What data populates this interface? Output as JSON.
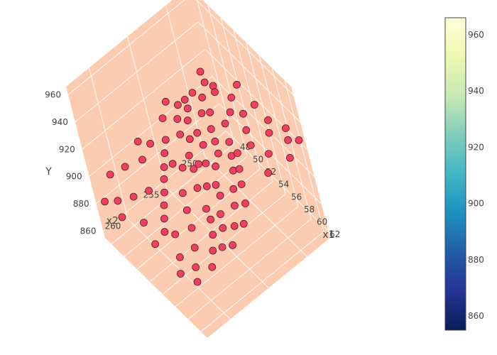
{
  "chart_data": {
    "type": "scatter",
    "dimensions": "3d",
    "axes": {
      "x": {
        "label": "x1",
        "ticks": [
          "48",
          "50",
          "52",
          "54",
          "56",
          "58",
          "60",
          "62"
        ],
        "range": [
          47,
          63
        ]
      },
      "y": {
        "label": "x2",
        "ticks": [
          "250",
          "255",
          "260"
        ],
        "range": [
          247,
          263
        ]
      },
      "z": {
        "label": "Y",
        "ticks": [
          "860",
          "880",
          "900",
          "920",
          "940",
          "960"
        ],
        "range": [
          855,
          966
        ]
      }
    },
    "colorbar": {
      "ticks": [
        "860",
        "880",
        "900",
        "920",
        "940",
        "960"
      ],
      "range": [
        855,
        966
      ],
      "colorscale": [
        "#081d58",
        "#253494",
        "#225ea8",
        "#1d91c0",
        "#41b6c4",
        "#7fcdbb",
        "#c7e9b4",
        "#edf8b1",
        "#ffffd9"
      ]
    },
    "marker_color": "#f0405f",
    "marker_outline": "#5a1a28",
    "scene_background": "#fcccb1",
    "grid": true,
    "points": [
      {
        "x": 47.8,
        "y": 251.0,
        "z": 905
      },
      {
        "x": 48.2,
        "y": 252.1,
        "z": 908
      },
      {
        "x": 48.6,
        "y": 250.4,
        "z": 911
      },
      {
        "x": 49.1,
        "y": 253.0,
        "z": 906
      },
      {
        "x": 49.5,
        "y": 251.8,
        "z": 910
      },
      {
        "x": 50.0,
        "y": 250.2,
        "z": 913
      },
      {
        "x": 50.4,
        "y": 252.6,
        "z": 909
      },
      {
        "x": 50.8,
        "y": 254.0,
        "z": 907
      },
      {
        "x": 51.2,
        "y": 251.3,
        "z": 912
      },
      {
        "x": 51.6,
        "y": 253.5,
        "z": 905
      },
      {
        "x": 52.0,
        "y": 250.8,
        "z": 914
      },
      {
        "x": 52.3,
        "y": 252.9,
        "z": 910
      },
      {
        "x": 52.7,
        "y": 254.6,
        "z": 903
      },
      {
        "x": 53.1,
        "y": 251.7,
        "z": 911
      },
      {
        "x": 53.5,
        "y": 253.2,
        "z": 908
      },
      {
        "x": 53.9,
        "y": 255.1,
        "z": 901
      },
      {
        "x": 54.2,
        "y": 250.6,
        "z": 915
      },
      {
        "x": 54.6,
        "y": 252.4,
        "z": 912
      },
      {
        "x": 55.0,
        "y": 254.2,
        "z": 906
      },
      {
        "x": 55.4,
        "y": 256.0,
        "z": 898
      },
      {
        "x": 55.8,
        "y": 251.5,
        "z": 913
      },
      {
        "x": 56.1,
        "y": 253.8,
        "z": 907
      },
      {
        "x": 56.5,
        "y": 255.5,
        "z": 902
      },
      {
        "x": 56.9,
        "y": 252.2,
        "z": 911
      },
      {
        "x": 57.3,
        "y": 254.9,
        "z": 904
      },
      {
        "x": 57.7,
        "y": 256.8,
        "z": 897
      },
      {
        "x": 58.0,
        "y": 253.0,
        "z": 909
      },
      {
        "x": 58.4,
        "y": 255.3,
        "z": 903
      },
      {
        "x": 58.8,
        "y": 257.2,
        "z": 896
      },
      {
        "x": 59.2,
        "y": 254.1,
        "z": 906
      },
      {
        "x": 59.6,
        "y": 256.4,
        "z": 900
      },
      {
        "x": 60.0,
        "y": 258.0,
        "z": 894
      },
      {
        "x": 60.3,
        "y": 255.0,
        "z": 903
      },
      {
        "x": 60.7,
        "y": 257.1,
        "z": 898
      },
      {
        "x": 61.1,
        "y": 259.0,
        "z": 892
      },
      {
        "x": 61.5,
        "y": 256.2,
        "z": 899
      },
      {
        "x": 61.9,
        "y": 258.3,
        "z": 895
      },
      {
        "x": 62.2,
        "y": 260.1,
        "z": 890
      },
      {
        "x": 62.6,
        "y": 257.5,
        "z": 896
      },
      {
        "x": 49.8,
        "y": 255.2,
        "z": 904
      },
      {
        "x": 50.6,
        "y": 256.1,
        "z": 902
      },
      {
        "x": 51.5,
        "y": 257.0,
        "z": 900
      },
      {
        "x": 52.4,
        "y": 257.8,
        "z": 899
      },
      {
        "x": 53.3,
        "y": 258.6,
        "z": 897
      },
      {
        "x": 54.1,
        "y": 259.4,
        "z": 895
      },
      {
        "x": 55.0,
        "y": 260.2,
        "z": 893
      },
      {
        "x": 55.9,
        "y": 261.0,
        "z": 891
      },
      {
        "x": 48.9,
        "y": 256.5,
        "z": 903
      },
      {
        "x": 49.3,
        "y": 258.0,
        "z": 900
      },
      {
        "x": 48.4,
        "y": 259.6,
        "z": 898
      },
      {
        "x": 47.6,
        "y": 261.0,
        "z": 895
      },
      {
        "x": 50.2,
        "y": 248.8,
        "z": 916
      },
      {
        "x": 51.0,
        "y": 249.2,
        "z": 917
      },
      {
        "x": 52.8,
        "y": 248.5,
        "z": 918
      },
      {
        "x": 53.7,
        "y": 249.5,
        "z": 916
      },
      {
        "x": 55.2,
        "y": 248.9,
        "z": 919
      },
      {
        "x": 56.7,
        "y": 249.8,
        "z": 918
      },
      {
        "x": 58.2,
        "y": 250.5,
        "z": 917
      },
      {
        "x": 59.0,
        "y": 248.6,
        "z": 921
      },
      {
        "x": 60.5,
        "y": 250.0,
        "z": 919
      },
      {
        "x": 61.7,
        "y": 251.2,
        "z": 916
      },
      {
        "x": 62.8,
        "y": 249.0,
        "z": 922
      },
      {
        "x": 57.5,
        "y": 251.8,
        "z": 914
      },
      {
        "x": 54.8,
        "y": 257.4,
        "z": 898
      },
      {
        "x": 56.3,
        "y": 258.2,
        "z": 896
      },
      {
        "x": 57.9,
        "y": 259.0,
        "z": 894
      },
      {
        "x": 59.4,
        "y": 260.0,
        "z": 891
      },
      {
        "x": 60.9,
        "y": 261.2,
        "z": 889
      },
      {
        "x": 62.0,
        "y": 262.0,
        "z": 887
      },
      {
        "x": 53.0,
        "y": 255.8,
        "z": 901
      },
      {
        "x": 51.9,
        "y": 259.5,
        "z": 896
      },
      {
        "x": 50.9,
        "y": 260.8,
        "z": 893
      },
      {
        "x": 49.7,
        "y": 262.0,
        "z": 890
      },
      {
        "x": 58.6,
        "y": 252.6,
        "z": 911
      },
      {
        "x": 59.8,
        "y": 253.4,
        "z": 909
      },
      {
        "x": 61.3,
        "y": 254.3,
        "z": 906
      },
      {
        "x": 62.4,
        "y": 255.6,
        "z": 902
      },
      {
        "x": 55.6,
        "y": 252.9,
        "z": 910
      },
      {
        "x": 54.4,
        "y": 254.7,
        "z": 905
      },
      {
        "x": 52.1,
        "y": 256.3,
        "z": 902
      },
      {
        "x": 48.0,
        "y": 254.0,
        "z": 906
      },
      {
        "x": 47.4,
        "y": 257.0,
        "z": 900
      },
      {
        "x": 47.2,
        "y": 252.8,
        "z": 909
      },
      {
        "x": 47.9,
        "y": 248.6,
        "z": 915
      },
      {
        "x": 49.0,
        "y": 249.0,
        "z": 914
      },
      {
        "x": 57.0,
        "y": 260.5,
        "z": 892
      },
      {
        "x": 58.9,
        "y": 261.6,
        "z": 889
      },
      {
        "x": 60.1,
        "y": 262.6,
        "z": 887
      },
      {
        "x": 61.4,
        "y": 248.0,
        "z": 924
      },
      {
        "x": 62.9,
        "y": 247.6,
        "z": 929
      },
      {
        "x": 56.0,
        "y": 262.4,
        "z": 889
      },
      {
        "x": 53.6,
        "y": 261.8,
        "z": 891
      },
      {
        "x": 51.3,
        "y": 262.8,
        "z": 889
      },
      {
        "x": 48.7,
        "y": 262.9,
        "z": 889
      },
      {
        "x": 55.5,
        "y": 247.6,
        "z": 921
      },
      {
        "x": 52.5,
        "y": 247.4,
        "z": 921
      },
      {
        "x": 58.1,
        "y": 247.9,
        "z": 923
      },
      {
        "x": 60.2,
        "y": 247.3,
        "z": 924
      }
    ]
  }
}
